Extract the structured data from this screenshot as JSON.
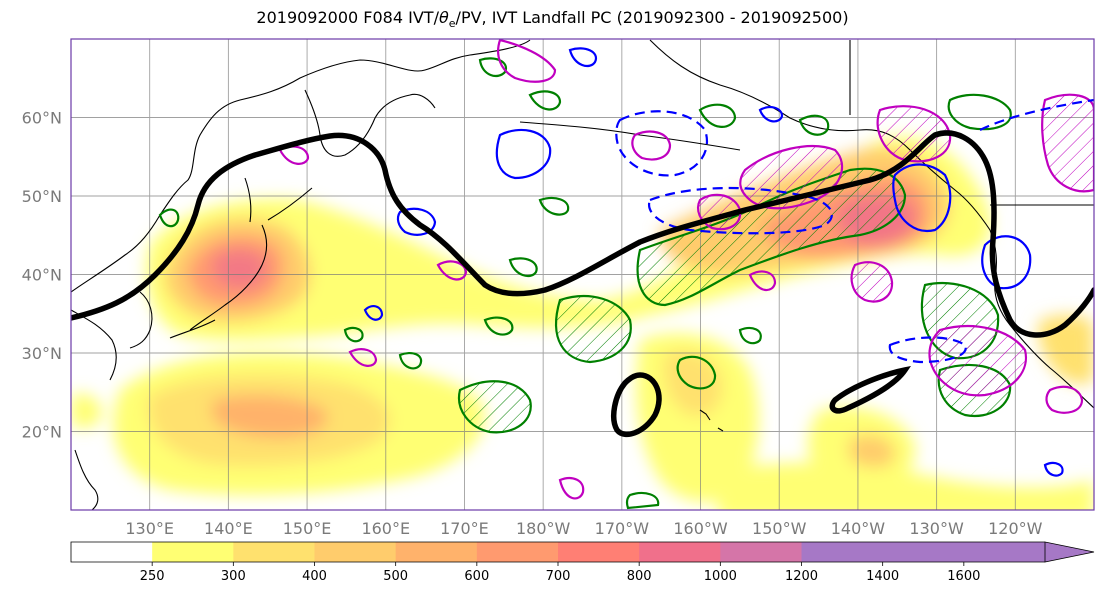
{
  "title": {
    "run": "2019092000",
    "forecast": "F084",
    "fields_prefix": "IVT/",
    "theta": "θ",
    "theta_sub": "e",
    "fields_suffix": "/PV, IVT Landfall PC (2019092300 - 2019092500)"
  },
  "map": {
    "extent": {
      "lon_min": 120,
      "lon_max": 250,
      "lat_min": 10,
      "lat_max": 70
    },
    "latitude_labels": [
      "60°N",
      "50°N",
      "40°N",
      "30°N",
      "20°N"
    ],
    "latitude_values": [
      60,
      50,
      40,
      30,
      20
    ],
    "longitude_labels": [
      "130°E",
      "140°E",
      "150°E",
      "160°E",
      "170°E",
      "180°W",
      "170°W",
      "160°W",
      "150°W",
      "140°W",
      "130°W",
      "120°W"
    ],
    "longitude_values": [
      130,
      140,
      150,
      160,
      170,
      180,
      190,
      200,
      210,
      220,
      230,
      240
    ],
    "gridlines": true,
    "fill_colors": [
      "#ffff73",
      "#ffe16e",
      "#ffcc6c",
      "#ffb26b",
      "#ff9a6f",
      "#ff7f74",
      "#f0708b",
      "#d575a8",
      "#a678c6"
    ],
    "contour_colors": {
      "theta_e": "#008000",
      "positive_pv": "#c000c0",
      "negative_pv": "#0000ff",
      "landfall_pc": "#000000"
    }
  },
  "colorbar": {
    "levels": [
      "250",
      "300",
      "400",
      "500",
      "600",
      "700",
      "800",
      "1000",
      "1200",
      "1400",
      "1600"
    ],
    "colors": [
      "#ffffff",
      "#ffff73",
      "#ffe16e",
      "#ffcc6c",
      "#ffb26b",
      "#ff9a6f",
      "#ff7f74",
      "#f0708b",
      "#d575a8",
      "#a678c6",
      "#a678c6",
      "#a678c6"
    ],
    "extend": "max"
  }
}
